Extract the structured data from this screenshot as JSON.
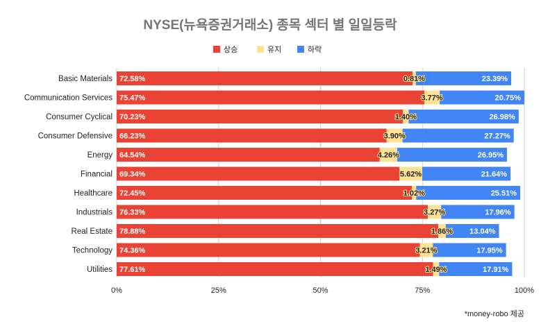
{
  "chart_data": {
    "type": "bar",
    "orientation": "horizontal",
    "stacked": true,
    "percent": true,
    "title": "NYSE(뉴욕증권거래소) 종목 섹터 별 일일등락",
    "categories": [
      "Basic Materials",
      "Communication Services",
      "Consumer Cyclical",
      "Consumer Defensive",
      "Energy",
      "Financial",
      "Healthcare",
      "Industrials",
      "Real Estate",
      "Technology",
      "Utilities"
    ],
    "series": [
      {
        "name": "상승",
        "color": "#ea4335",
        "values": [
          72.58,
          75.47,
          70.23,
          66.23,
          64.54,
          69.34,
          72.45,
          76.33,
          78.88,
          74.36,
          77.61
        ]
      },
      {
        "name": "유지",
        "color": "#fde293",
        "values": [
          0.81,
          3.77,
          1.4,
          3.9,
          4.26,
          5.62,
          1.02,
          3.27,
          1.86,
          3.21,
          1.49
        ]
      },
      {
        "name": "하락",
        "color": "#4285f4",
        "values": [
          23.39,
          20.75,
          26.98,
          27.27,
          26.95,
          21.64,
          25.51,
          17.96,
          13.04,
          17.95,
          17.91
        ]
      }
    ],
    "xticks": [
      "0%",
      "25%",
      "50%",
      "75%",
      "100%"
    ],
    "xlim": [
      0,
      100
    ],
    "grid": true,
    "legend": "top"
  },
  "credit": "*money-robo 제공"
}
